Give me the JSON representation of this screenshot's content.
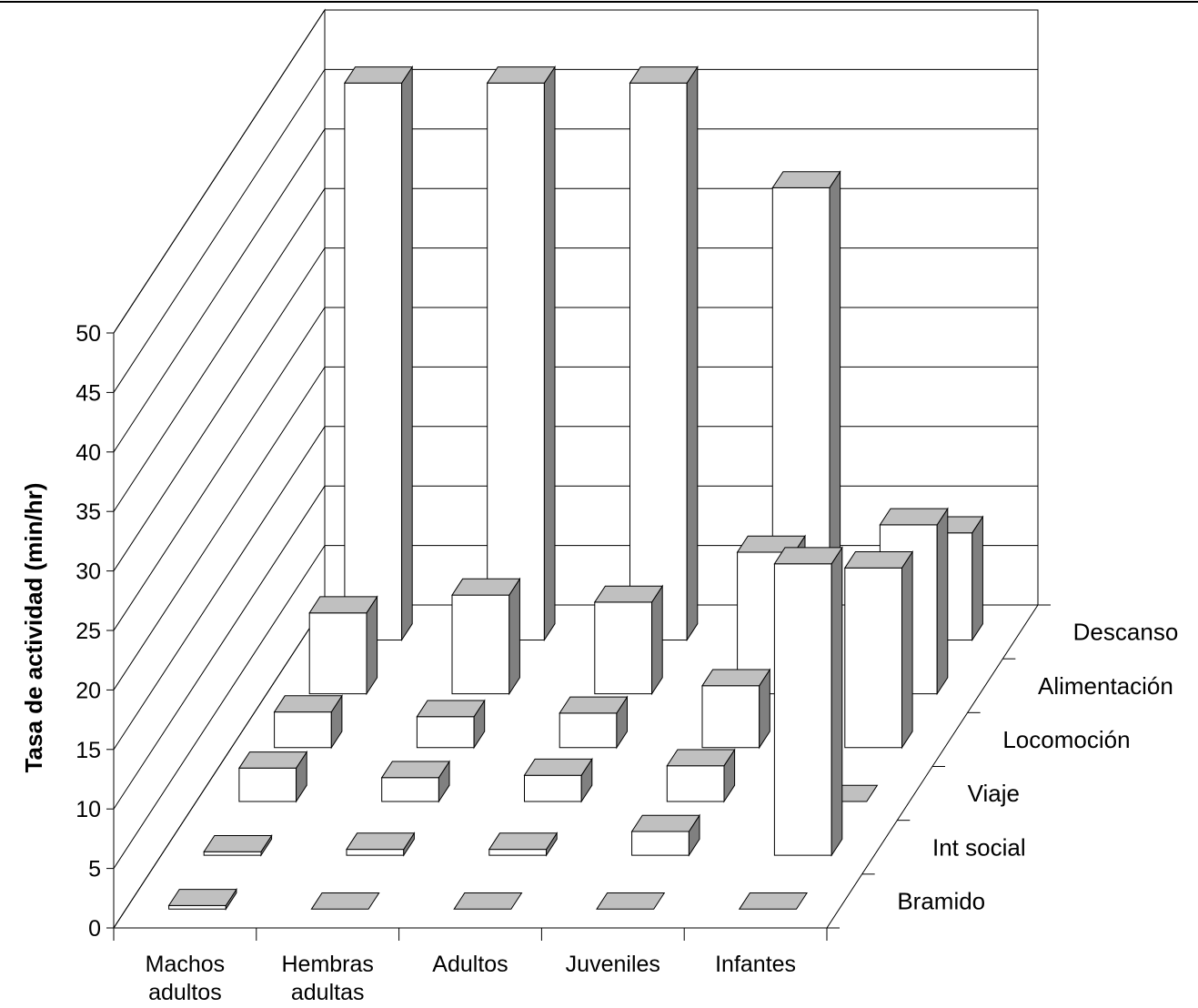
{
  "chart_data": {
    "type": "bar",
    "subtype": "3d-grouped-bar",
    "title": "",
    "xlabel": "",
    "ylabel": "Tasa de actividad (min/hr)",
    "ylim": [
      0,
      50
    ],
    "yticks": [
      0,
      5,
      10,
      15,
      20,
      25,
      30,
      35,
      40,
      45,
      50
    ],
    "grid": true,
    "categories": [
      "Machos adultos",
      "Hembras adultas",
      "Adultos",
      "Juveniles",
      "Infantes"
    ],
    "category_lines": [
      [
        "Machos",
        "adultos"
      ],
      [
        "Hembras",
        "adultas"
      ],
      [
        "Adultos"
      ],
      [
        "Juveniles"
      ],
      [
        "Infantes"
      ]
    ],
    "series": [
      {
        "name": "Bramido",
        "values": [
          0.3,
          0,
          0,
          0,
          0
        ]
      },
      {
        "name": "Int social",
        "values": [
          0.3,
          0.5,
          0.5,
          2.0,
          24.5
        ]
      },
      {
        "name": "Viaje",
        "values": [
          2.8,
          2.0,
          2.2,
          3.0,
          0
        ]
      },
      {
        "name": "Locomoción",
        "values": [
          3.0,
          2.6,
          2.9,
          5.2,
          15.1
        ]
      },
      {
        "name": "Alimentación",
        "values": [
          6.8,
          8.3,
          7.7,
          11.9,
          14.2
        ]
      },
      {
        "name": "Descanso",
        "values": [
          46.8,
          46.8,
          46.8,
          38.0,
          9.0
        ]
      }
    ],
    "colors": {
      "front": "#ffffff",
      "top": "#c0c0c0",
      "side": "#808080",
      "outline": "#000000",
      "grid": "#000000"
    }
  }
}
